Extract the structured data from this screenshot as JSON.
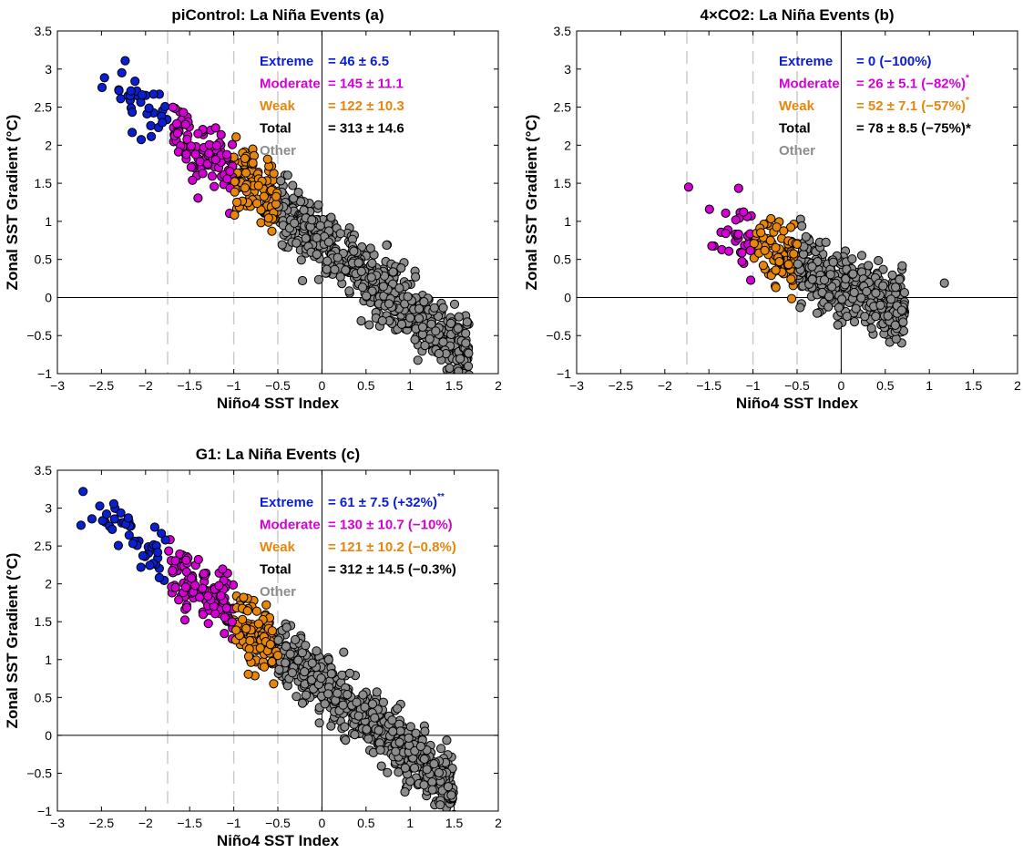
{
  "figure": {
    "colors": {
      "extreme": "#0a1fd0",
      "moderate": "#d400d4",
      "weak": "#e6860a",
      "total": "#000000",
      "other": "#8c8c8c",
      "other_text": "#8c8c8c",
      "guide_lines": "#c8c8c8"
    }
  },
  "chart_data": [
    {
      "id": "a",
      "type": "scatter",
      "title": "piControl: La Niña Events (a)",
      "xlabel": "Niño4 SST Index",
      "ylabel": "Zonal SST Gradient (°C)",
      "xlim": [
        -3,
        2
      ],
      "ylim": [
        -1,
        3.5
      ],
      "xticks": [
        "-3",
        "-2.5",
        "-2",
        "-1.5",
        "-1",
        "-0.5",
        "0",
        "0.5",
        "1",
        "1.5",
        "2"
      ],
      "yticks": [
        "-1",
        "-0.5",
        "0",
        "0.5",
        "1",
        "1.5",
        "2",
        "2.5",
        "3",
        "3.5"
      ],
      "thresholds": [
        -1.75,
        -1.0,
        -0.5
      ],
      "zero_lines": true,
      "legend": [
        {
          "key": "extreme",
          "label": "Extreme",
          "stat": "=   46 ± 6.5",
          "sup": ""
        },
        {
          "key": "moderate",
          "label": "Moderate",
          "stat": "= 145 ± 11.1",
          "sup": ""
        },
        {
          "key": "weak",
          "label": "Weak",
          "stat": "= 122 ± 10.3",
          "sup": ""
        },
        {
          "key": "total",
          "label": "Total",
          "stat": "= 313 ± 14.6",
          "sup": ""
        },
        {
          "key": "other",
          "label": "Other",
          "stat": "",
          "sup": ""
        }
      ],
      "distribution": {
        "x_min": -2.7,
        "x_max": 1.68,
        "slope": -0.88,
        "intercept": 0.73,
        "spread": 0.2
      }
    },
    {
      "id": "b",
      "type": "scatter",
      "title": "4×CO2: La Niña Events (b)",
      "xlabel": "Niño4 SST Index",
      "ylabel": "Zonal SST Gradient (°C)",
      "xlim": [
        -3,
        2
      ],
      "ylim": [
        -1,
        3.5
      ],
      "xticks": [
        "-3",
        "-2.5",
        "-2",
        "-1.5",
        "-1",
        "-0.5",
        "0",
        "0.5",
        "1",
        "1.5",
        "2"
      ],
      "yticks": [
        "-1",
        "-0.5",
        "0",
        "0.5",
        "1",
        "1.5",
        "2",
        "2.5",
        "3",
        "3.5"
      ],
      "thresholds": [
        -1.75,
        -1.0,
        -0.5
      ],
      "zero_lines": true,
      "legend": [
        {
          "key": "extreme",
          "label": "Extreme",
          "stat": "=   0 (−100%)",
          "sup": ""
        },
        {
          "key": "moderate",
          "label": "Moderate",
          "stat": "= 26 ± 5.1 (−82%)",
          "sup": "*"
        },
        {
          "key": "weak",
          "label": "Weak",
          "stat": "= 52 ± 7.1 (−57%)",
          "sup": "*"
        },
        {
          "key": "total",
          "label": "Total",
          "stat": "= 78 ± 8.5 (−75%)*",
          "sup": ""
        },
        {
          "key": "other",
          "label": "Other",
          "stat": "",
          "sup": ""
        }
      ],
      "distribution": {
        "x_min": -1.6,
        "x_max": 0.72,
        "slope": -0.5,
        "intercept": 0.2,
        "spread": 0.22
      },
      "outliers": [
        {
          "x": -1.73,
          "y": 1.45
        },
        {
          "x": 1.17,
          "y": 0.19
        }
      ]
    },
    {
      "id": "c",
      "type": "scatter",
      "title": "G1: La Niña Events (c)",
      "xlabel": "Niño4 SST Index",
      "ylabel": "Zonal SST Gradient (°C)",
      "xlim": [
        -3,
        2
      ],
      "ylim": [
        -1,
        3.5
      ],
      "xticks": [
        "-3",
        "-2.5",
        "-2",
        "-1.5",
        "-1",
        "-0.5",
        "0",
        "0.5",
        "1",
        "1.5",
        "2"
      ],
      "yticks": [
        "-1",
        "-0.5",
        "0",
        "0.5",
        "1",
        "1.5",
        "2",
        "2.5",
        "3",
        "3.5"
      ],
      "thresholds": [
        -1.75,
        -1.0,
        -0.5
      ],
      "zero_lines": true,
      "legend": [
        {
          "key": "extreme",
          "label": "Extreme",
          "stat": "=   61 ± 7.5 (+32%)",
          "sup": "**"
        },
        {
          "key": "moderate",
          "label": "Moderate",
          "stat": "= 130 ± 10.7 (−10%)",
          "sup": ""
        },
        {
          "key": "weak",
          "label": "Weak",
          "stat": "= 121 ± 10.2 (−0.8%)",
          "sup": ""
        },
        {
          "key": "total",
          "label": "Total",
          "stat": "= 312 ± 14.5 (−0.3%)",
          "sup": ""
        },
        {
          "key": "other",
          "label": "Other",
          "stat": "",
          "sup": ""
        }
      ],
      "distribution": {
        "x_min": -2.85,
        "x_max": 1.5,
        "slope": -0.9,
        "intercept": 0.66,
        "spread": 0.2
      }
    }
  ]
}
